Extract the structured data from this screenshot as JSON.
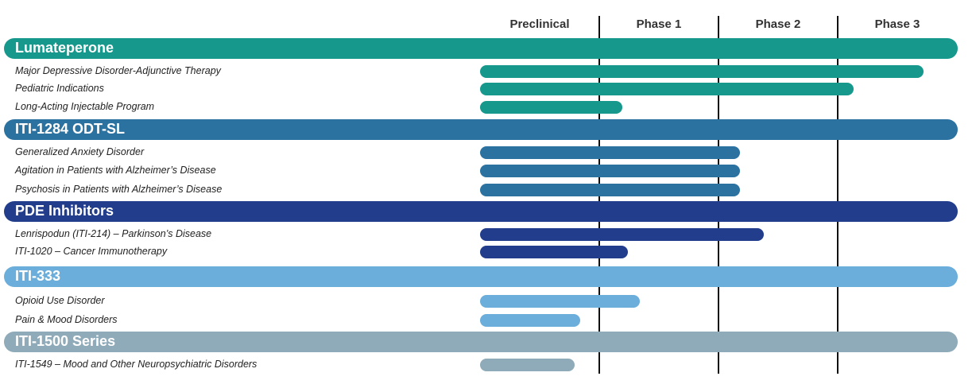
{
  "phases": [
    "Preclinical",
    "Phase 1",
    "Phase 2",
    "Phase 3"
  ],
  "chart_data": {
    "type": "bar",
    "orientation": "horizontal",
    "x_axis_categories": [
      "Preclinical",
      "Phase 1",
      "Phase 2",
      "Phase 3"
    ],
    "xlim": [
      0,
      4
    ],
    "groups": [
      {
        "name": "Lumateperone",
        "color": "#16988D",
        "indications": [
          {
            "label": "Major Depressive Disorder-Adjunctive Therapy",
            "progress": 3.72
          },
          {
            "label": "Pediatric Indications",
            "progress": 3.13
          },
          {
            "label": "Long-Acting Injectable Program",
            "progress": 1.19
          }
        ]
      },
      {
        "name": "ITI-1284 ODT-SL",
        "color": "#2C72A0",
        "indications": [
          {
            "label": "Generalized Anxiety Disorder",
            "progress": 2.18
          },
          {
            "label": "Agitation in Patients with Alzheimer’s Disease",
            "progress": 2.18
          },
          {
            "label": "Psychosis in Patients with Alzheimer’s Disease",
            "progress": 2.18
          }
        ]
      },
      {
        "name": "PDE Inhibitors",
        "color": "#223D8B",
        "indications": [
          {
            "label": "Lenrispodun (ITI-214) – Parkinson’s Disease",
            "progress": 2.38
          },
          {
            "label": "ITI-1020 – Cancer Immunotherapy",
            "progress": 1.24
          }
        ]
      },
      {
        "name": "ITI-333",
        "color": "#6BAEDB",
        "indications": [
          {
            "label": "Opioid Use Disorder",
            "progress": 1.34
          },
          {
            "label": "Pain & Mood Disorders",
            "progress": 0.84
          }
        ]
      },
      {
        "name": "ITI-1500 Series",
        "color": "#8FAAB9",
        "indications": [
          {
            "label": "ITI-1549 – Mood and Other Neuropsychiatric Disorders",
            "progress": 0.79
          }
        ]
      }
    ]
  }
}
